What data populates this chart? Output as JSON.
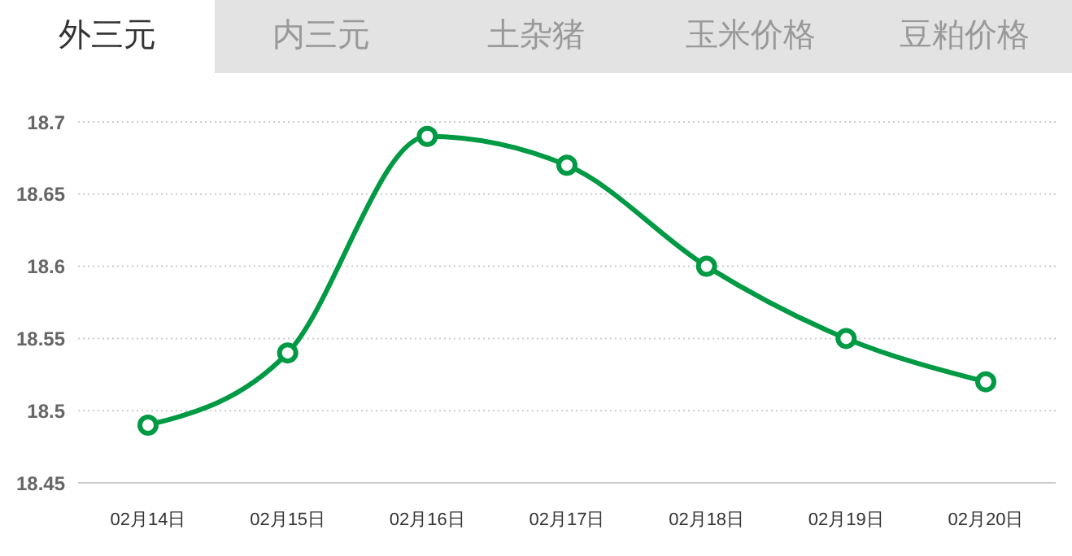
{
  "chart_data": {
    "type": "line",
    "title": "外三元",
    "annotations": [
      "内三元",
      "土杂猪",
      "玉米价格",
      "豆粕价格"
    ],
    "categories": [
      "02月14日",
      "02月15日",
      "02月16日",
      "02月17日",
      "02月18日",
      "02月19日",
      "02月20日"
    ],
    "series": [
      {
        "color": "#009944",
        "values": [
          18.49,
          18.54,
          18.69,
          18.67,
          18.6,
          18.55,
          18.52
        ]
      }
    ],
    "ylim": [
      18.45,
      18.7
    ],
    "yticks": [
      18.45,
      18.5,
      18.55,
      18.6,
      18.65,
      18.7
    ],
    "grid": "y",
    "legend": false,
    "marker": "circle",
    "line_style": "solid"
  }
}
